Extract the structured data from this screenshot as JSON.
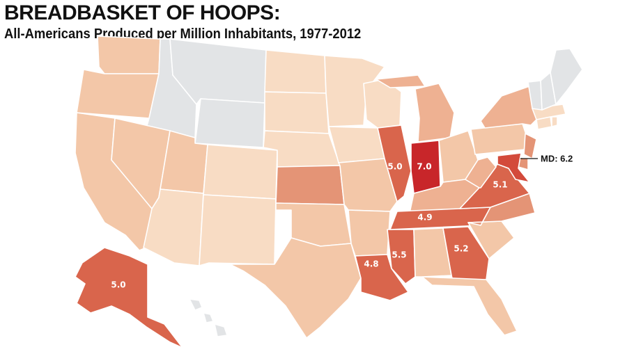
{
  "title": "BREADBASKET OF HOOPS:",
  "subtitle": "All-Americans Produced per Million Inhabitants, 1977-2012",
  "colors": {
    "none": "#e2e4e6",
    "lightest": "#f8dcc4",
    "light": "#f3c7a8",
    "medium": "#eeb192",
    "mediumdark": "#e49476",
    "dark": "#d9654c",
    "darker": "#d34a3b",
    "darkest": "#c8262a"
  },
  "states": [
    {
      "id": "WA",
      "tier": "light"
    },
    {
      "id": "OR",
      "tier": "light"
    },
    {
      "id": "CA",
      "tier": "light"
    },
    {
      "id": "ID",
      "tier": "none"
    },
    {
      "id": "NV",
      "tier": "light"
    },
    {
      "id": "MT",
      "tier": "none"
    },
    {
      "id": "WY",
      "tier": "none"
    },
    {
      "id": "UT",
      "tier": "light"
    },
    {
      "id": "AZ",
      "tier": "lightest"
    },
    {
      "id": "CO",
      "tier": "lightest"
    },
    {
      "id": "NM",
      "tier": "lightest"
    },
    {
      "id": "ND",
      "tier": "lightest"
    },
    {
      "id": "SD",
      "tier": "lightest"
    },
    {
      "id": "NE",
      "tier": "lightest"
    },
    {
      "id": "KS",
      "tier": "mediumdark"
    },
    {
      "id": "OK",
      "tier": "light"
    },
    {
      "id": "TX",
      "tier": "light"
    },
    {
      "id": "MN",
      "tier": "lightest"
    },
    {
      "id": "IA",
      "tier": "lightest"
    },
    {
      "id": "MO",
      "tier": "light"
    },
    {
      "id": "AR",
      "tier": "light"
    },
    {
      "id": "LA",
      "tier": "dark",
      "value": "4.8"
    },
    {
      "id": "WI",
      "tier": "lightest"
    },
    {
      "id": "IL",
      "tier": "dark",
      "value": "5.0"
    },
    {
      "id": "MS",
      "tier": "dark",
      "value": "5.5"
    },
    {
      "id": "IN",
      "tier": "darkest",
      "value": "7.0"
    },
    {
      "id": "MI",
      "tier": "medium"
    },
    {
      "id": "OH",
      "tier": "light"
    },
    {
      "id": "KY",
      "tier": "medium"
    },
    {
      "id": "TN",
      "tier": "dark",
      "value": "4.9"
    },
    {
      "id": "AL",
      "tier": "light"
    },
    {
      "id": "GA",
      "tier": "dark",
      "value": "5.2"
    },
    {
      "id": "FL",
      "tier": "light"
    },
    {
      "id": "SC",
      "tier": "light"
    },
    {
      "id": "NC",
      "tier": "mediumdark"
    },
    {
      "id": "VA",
      "tier": "dark",
      "value": "5.1"
    },
    {
      "id": "WV",
      "tier": "medium"
    },
    {
      "id": "PA",
      "tier": "light"
    },
    {
      "id": "NY",
      "tier": "medium"
    },
    {
      "id": "NJ",
      "tier": "mediumdark"
    },
    {
      "id": "DE",
      "tier": "mediumdark"
    },
    {
      "id": "MD",
      "tier": "darker"
    },
    {
      "id": "CT",
      "tier": "lightest"
    },
    {
      "id": "RI",
      "tier": "lightest"
    },
    {
      "id": "MA",
      "tier": "lightest"
    },
    {
      "id": "VT",
      "tier": "none"
    },
    {
      "id": "NH",
      "tier": "none"
    },
    {
      "id": "ME",
      "tier": "none"
    },
    {
      "id": "AK",
      "tier": "dark",
      "value": "5.0"
    },
    {
      "id": "HI",
      "tier": "none"
    }
  ],
  "callout": {
    "label": "MD: 6.2"
  }
}
